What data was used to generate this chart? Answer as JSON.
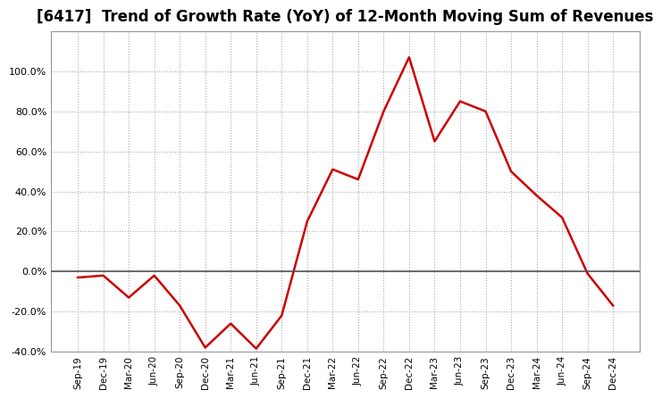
{
  "title": "[6417]  Trend of Growth Rate (YoY) of 12-Month Moving Sum of Revenues",
  "x_labels": [
    "Sep-19",
    "Dec-19",
    "Mar-20",
    "Jun-20",
    "Sep-20",
    "Dec-20",
    "Mar-21",
    "Jun-21",
    "Sep-21",
    "Dec-21",
    "Mar-22",
    "Jun-22",
    "Sep-22",
    "Dec-22",
    "Mar-23",
    "Jun-23",
    "Sep-23",
    "Dec-23",
    "Mar-24",
    "Jun-24",
    "Sep-24",
    "Dec-24"
  ],
  "y_values": [
    -3.0,
    -2.0,
    -13.0,
    -2.0,
    -17.0,
    -38.0,
    -26.0,
    -38.5,
    -22.0,
    25.0,
    51.0,
    46.0,
    80.0,
    107.0,
    65.0,
    85.0,
    80.0,
    50.0,
    38.0,
    27.0,
    -1.0,
    -17.0
  ],
  "line_color": "#cc0000",
  "background_color": "#ffffff",
  "grid_color": "#aaaaaa",
  "ylim": [
    -40,
    120
  ],
  "yticks": [
    -40,
    -20,
    0,
    20,
    40,
    60,
    80,
    100
  ],
  "title_fontsize": 12,
  "zero_line_color": "#555555"
}
